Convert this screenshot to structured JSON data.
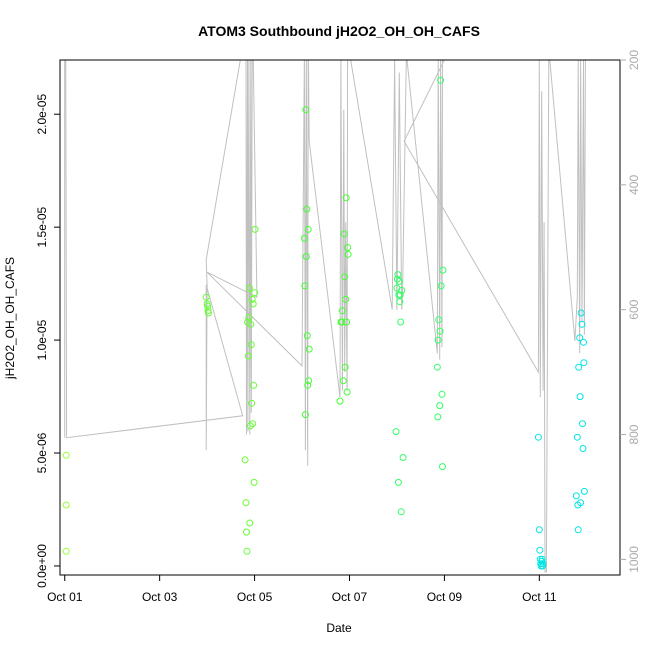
{
  "chart_data": {
    "type": "scatter",
    "title": "ATOM3 Southbound jH2O2_OH_OH_CAFS",
    "xlabel": "Date",
    "ylabel": "jH2O2_OH_OH_CAFS",
    "xlim": [
      0.9,
      12.7
    ],
    "ylim": [
      -4e-07,
      2.24e-05
    ],
    "y2lim": [
      1025,
      200
    ],
    "x_ticks": [
      1,
      3,
      5,
      7,
      9,
      11
    ],
    "x_tick_labels": [
      "Oct 01",
      "Oct 03",
      "Oct 05",
      "Oct 07",
      "Oct 09",
      "Oct 11"
    ],
    "y_ticks": [
      0,
      5e-06,
      1e-05,
      1.5e-05,
      2e-05
    ],
    "y_tick_labels": [
      "0.0e+00",
      "5.0e-06",
      "1.0e-05",
      "1.5e-05",
      "2.0e-05"
    ],
    "y2_ticks": [
      200,
      400,
      600,
      800,
      1000
    ],
    "y2_tick_labels": [
      "200",
      "400",
      "600",
      "800",
      "1000"
    ],
    "grid": false,
    "legend": "none",
    "colors": {
      "green_light": "#99ff33",
      "green": "#33ff33",
      "green_teal": "#33ff99",
      "cyan": "#00e5e5",
      "gray": "#c0c0c0",
      "axis": "#000000",
      "right_axis": "#aaaaaa"
    },
    "series": [
      {
        "color": "#99ff33",
        "marker": "circle",
        "points": [
          [
            1.03,
            4.9e-06
          ],
          [
            1.03,
            2.7e-06
          ],
          [
            1.03,
            6.5e-07
          ]
        ]
      },
      {
        "color": "#66ff33",
        "marker": "circle",
        "points": [
          [
            3.98,
            1.19e-05
          ],
          [
            4.0,
            1.16e-05
          ],
          [
            4.01,
            1.15e-05
          ],
          [
            4.02,
            1.13e-05
          ],
          [
            4.03,
            1.12e-05
          ],
          [
            4.8,
            4.7e-06
          ],
          [
            4.82,
            2.8e-06
          ],
          [
            4.83,
            1.5e-06
          ],
          [
            4.84,
            6.5e-07
          ],
          [
            4.85,
            1.08e-05
          ],
          [
            4.87,
            9.3e-06
          ],
          [
            4.88,
            1.1e-05
          ],
          [
            4.89,
            1.23e-05
          ],
          [
            4.9,
            1.9e-06
          ],
          [
            4.91,
            6.2e-06
          ],
          [
            4.92,
            1.07e-05
          ],
          [
            4.93,
            9.8e-06
          ],
          [
            4.94,
            7.2e-06
          ],
          [
            4.95,
            1.18e-05
          ],
          [
            4.96,
            6.3e-06
          ],
          [
            4.97,
            1.16e-05
          ],
          [
            4.98,
            8e-06
          ],
          [
            4.99,
            3.7e-06
          ],
          [
            5.0,
            1.21e-05
          ],
          [
            5.01,
            1.49e-05
          ]
        ]
      },
      {
        "color": "#44ff33",
        "marker": "circle",
        "points": [
          [
            6.05,
            1.45e-05
          ],
          [
            6.06,
            1.24e-05
          ],
          [
            6.07,
            6.7e-06
          ],
          [
            6.08,
            2.02e-05
          ],
          [
            6.09,
            1.37e-05
          ],
          [
            6.1,
            1.58e-05
          ],
          [
            6.11,
            1.02e-05
          ],
          [
            6.12,
            8e-06
          ],
          [
            6.13,
            1.49e-05
          ],
          [
            6.14,
            8.2e-06
          ],
          [
            6.15,
            9.6e-06
          ],
          [
            6.8,
            7.3e-06
          ],
          [
            6.82,
            1.08e-05
          ],
          [
            6.84,
            1.08e-05
          ],
          [
            6.85,
            1.13e-05
          ],
          [
            6.87,
            8.2e-06
          ],
          [
            6.89,
            1.47e-05
          ],
          [
            6.9,
            1.28e-05
          ],
          [
            6.91,
            8.8e-06
          ],
          [
            6.92,
            1.18e-05
          ],
          [
            6.93,
            1.63e-05
          ],
          [
            6.94,
            1.08e-05
          ],
          [
            6.95,
            7.7e-06
          ],
          [
            6.96,
            1.41e-05
          ],
          [
            6.97,
            1.38e-05
          ]
        ]
      },
      {
        "color": "#33ff66",
        "marker": "circle",
        "points": [
          [
            7.98,
            5.95e-06
          ],
          [
            8.0,
            1.23e-05
          ],
          [
            8.01,
            1.27e-05
          ],
          [
            8.02,
            1.29e-05
          ],
          [
            8.03,
            3.7e-06
          ],
          [
            8.04,
            1.2e-05
          ],
          [
            8.05,
            1.26e-05
          ],
          [
            8.06,
            1.17e-05
          ],
          [
            8.07,
            1.2e-05
          ],
          [
            8.08,
            1.08e-05
          ],
          [
            8.09,
            2.4e-06
          ],
          [
            8.1,
            1.22e-05
          ],
          [
            8.13,
            4.8e-06
          ],
          [
            8.85,
            8.8e-06
          ],
          [
            8.86,
            6.6e-06
          ],
          [
            8.87,
            1e-05
          ],
          [
            8.88,
            1.09e-05
          ],
          [
            8.9,
            7.1e-06
          ],
          [
            8.91,
            1.04e-05
          ],
          [
            8.92,
            2.15e-05
          ],
          [
            8.93,
            1.24e-05
          ],
          [
            8.95,
            7.6e-06
          ],
          [
            8.96,
            4.4e-06
          ],
          [
            8.97,
            1.31e-05
          ]
        ]
      },
      {
        "color": "#00e5e5",
        "marker": "circle",
        "points": [
          [
            10.98,
            5.7e-06
          ],
          [
            11.0,
            1.6e-06
          ],
          [
            11.01,
            7e-07
          ],
          [
            11.02,
            3e-07
          ],
          [
            11.03,
            1e-07
          ],
          [
            11.04,
            0.0
          ],
          [
            11.05,
            2e-07
          ],
          [
            11.06,
            3e-07
          ],
          [
            11.07,
            0.0
          ],
          [
            11.08,
            1e-07
          ],
          [
            11.78,
            3.1e-06
          ],
          [
            11.8,
            5.7e-06
          ],
          [
            11.81,
            2.7e-06
          ],
          [
            11.82,
            1.6e-06
          ],
          [
            11.83,
            8.8e-06
          ],
          [
            11.85,
            1.01e-05
          ],
          [
            11.86,
            7.5e-06
          ],
          [
            11.87,
            2.8e-06
          ],
          [
            11.88,
            1.12e-05
          ],
          [
            11.9,
            1.07e-05
          ],
          [
            11.91,
            6.3e-06
          ],
          [
            11.92,
            5.2e-06
          ],
          [
            11.93,
            9.9e-06
          ],
          [
            11.94,
            9e-06
          ],
          [
            11.95,
            3.3e-06
          ]
        ]
      }
    ],
    "pressure_line": {
      "color": "#c0c0c0",
      "axis": "right",
      "points": [
        [
          1.0,
          805
        ],
        [
          1.0,
          170
        ],
        [
          1.02,
          170
        ],
        [
          1.04,
          805
        ],
        [
          4.75,
          770
        ],
        [
          3.98,
          560
        ],
        [
          3.98,
          825
        ],
        [
          4.0,
          560
        ],
        [
          3.98,
          520
        ],
        [
          4.7,
          200
        ],
        [
          4.82,
          200
        ],
        [
          4.83,
          800
        ],
        [
          4.85,
          190
        ],
        [
          4.86,
          795
        ],
        [
          4.88,
          190
        ],
        [
          4.9,
          800
        ],
        [
          4.92,
          195
        ],
        [
          4.93,
          765
        ],
        [
          4.95,
          200
        ],
        [
          4.97,
          190
        ],
        [
          5.05,
          580
        ],
        [
          4.0,
          540
        ],
        [
          6.0,
          690
        ],
        [
          6.05,
          190
        ],
        [
          6.07,
          825
        ],
        [
          6.09,
          180
        ],
        [
          6.12,
          850
        ],
        [
          6.13,
          150
        ],
        [
          6.15,
          330
        ],
        [
          6.8,
          740
        ],
        [
          6.82,
          200
        ],
        [
          6.85,
          730
        ],
        [
          6.88,
          280
        ],
        [
          6.9,
          700
        ],
        [
          6.92,
          460
        ],
        [
          6.95,
          730
        ],
        [
          6.96,
          170
        ],
        [
          7.9,
          600
        ],
        [
          7.95,
          200
        ],
        [
          8.0,
          600
        ],
        [
          8.05,
          220
        ],
        [
          8.1,
          600
        ],
        [
          8.12,
          570
        ],
        [
          8.2,
          190
        ],
        [
          8.85,
          670
        ],
        [
          8.87,
          200
        ],
        [
          8.9,
          680
        ],
        [
          8.92,
          200
        ],
        [
          8.95,
          660
        ],
        [
          8.96,
          195
        ],
        [
          9.0,
          200
        ],
        [
          8.15,
          330
        ],
        [
          10.98,
          700
        ],
        [
          11.0,
          200
        ],
        [
          11.02,
          740
        ],
        [
          11.05,
          250
        ],
        [
          11.08,
          730
        ],
        [
          11.1,
          460
        ],
        [
          11.12,
          1020
        ],
        [
          11.15,
          1020
        ],
        [
          11.2,
          200
        ],
        [
          11.22,
          200
        ],
        [
          11.75,
          650
        ],
        [
          11.8,
          580
        ],
        [
          11.82,
          200
        ],
        [
          11.85,
          670
        ],
        [
          11.87,
          200
        ],
        [
          11.9,
          620
        ],
        [
          11.93,
          200
        ],
        [
          11.95,
          640
        ],
        [
          11.97,
          200
        ],
        [
          12.0,
          200
        ]
      ]
    }
  }
}
